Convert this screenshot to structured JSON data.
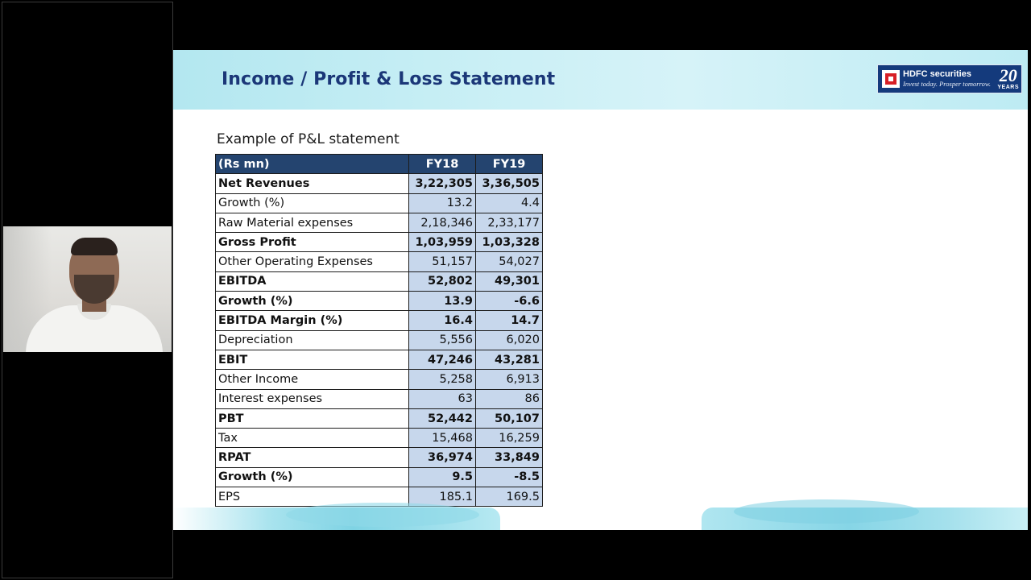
{
  "slide": {
    "title": "Income / Profit & Loss Statement",
    "logo": {
      "brand": "HDFC securities",
      "tagline": "Invest today. Prosper tomorrow.",
      "years_number": "20",
      "years_label": "YEARS"
    },
    "table_caption": "Example of P&L statement",
    "table": {
      "headers": [
        "(Rs mn)",
        "FY18",
        "FY19"
      ],
      "rows": [
        {
          "label": "Net Revenues",
          "fy18": "3,22,305",
          "fy19": "3,36,505",
          "bold": true
        },
        {
          "label": "Growth (%)",
          "fy18": "13.2",
          "fy19": "4.4",
          "bold": false
        },
        {
          "label": "Raw Material expenses",
          "fy18": "2,18,346",
          "fy19": "2,33,177",
          "bold": false
        },
        {
          "label": "Gross Profit",
          "fy18": "1,03,959",
          "fy19": "1,03,328",
          "bold": true
        },
        {
          "label": "Other Operating Expenses",
          "fy18": "51,157",
          "fy19": "54,027",
          "bold": false
        },
        {
          "label": "EBITDA",
          "fy18": "52,802",
          "fy19": "49,301",
          "bold": true
        },
        {
          "label": "Growth (%)",
          "fy18": "13.9",
          "fy19": "-6.6",
          "bold": true
        },
        {
          "label": "EBITDA Margin (%)",
          "fy18": "16.4",
          "fy19": "14.7",
          "bold": true
        },
        {
          "label": "Depreciation",
          "fy18": "5,556",
          "fy19": "6,020",
          "bold": false
        },
        {
          "label": "EBIT",
          "fy18": "47,246",
          "fy19": "43,281",
          "bold": true
        },
        {
          "label": "Other Income",
          "fy18": "5,258",
          "fy19": "6,913",
          "bold": false
        },
        {
          "label": "Interest expenses",
          "fy18": "63",
          "fy19": "86",
          "bold": false
        },
        {
          "label": "PBT",
          "fy18": "52,442",
          "fy19": "50,107",
          "bold": true
        },
        {
          "label": "Tax",
          "fy18": "15,468",
          "fy19": "16,259",
          "bold": false
        },
        {
          "label": "RPAT",
          "fy18": "36,974",
          "fy19": "33,849",
          "bold": true
        },
        {
          "label": "Growth (%)",
          "fy18": "9.5",
          "fy19": "-8.5",
          "bold": true
        },
        {
          "label": "EPS",
          "fy18": "185.1",
          "fy19": "169.5",
          "bold": false
        }
      ]
    }
  },
  "colors": {
    "title": "#1b3778",
    "table_header_bg": "#24446f",
    "table_value_bg": "#c7d7ec",
    "logo_bg": "#143a7c",
    "logo_red": "#d71f26",
    "header_band": "#c9eff5"
  }
}
